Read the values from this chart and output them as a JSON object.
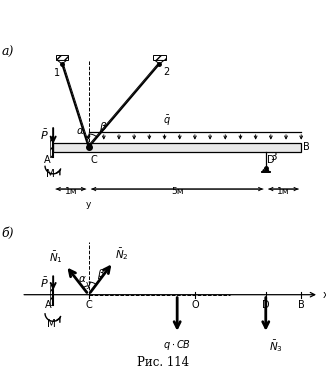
{
  "fig_width": 3.26,
  "fig_height": 3.71,
  "dpi": 100,
  "bg_color": "#ffffff",
  "title": "Рис. 114",
  "part_a_label": "а)",
  "part_b_label": "б)",
  "beam_color": "#e8e8e8",
  "wall_color": "#c0c0c0"
}
